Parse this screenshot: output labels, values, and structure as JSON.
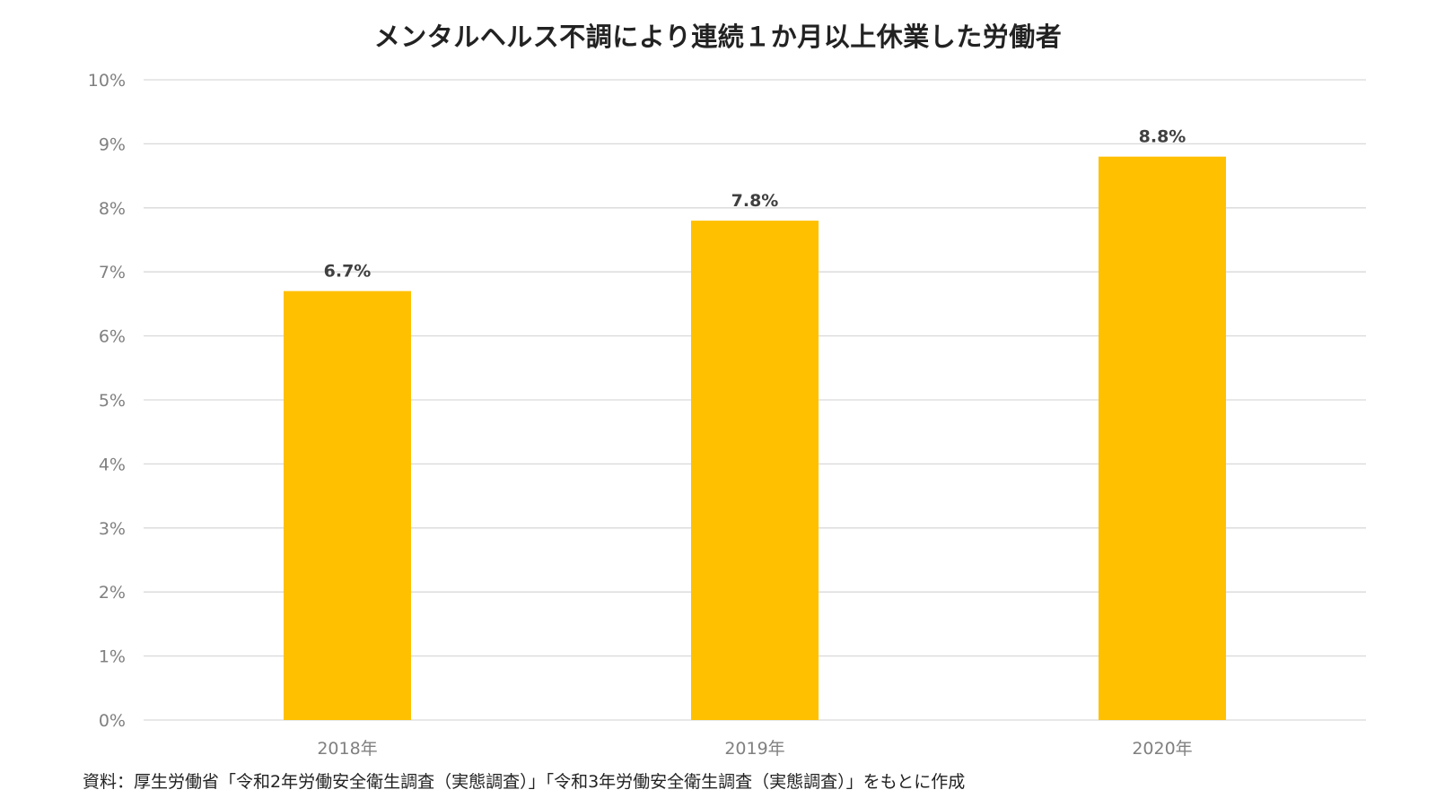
{
  "chart_data": {
    "type": "bar",
    "title": "メンタルヘルス不調により連続１か月以上休業した労働者",
    "categories": [
      "2018年",
      "2019年",
      "2020年"
    ],
    "values": [
      6.7,
      7.8,
      8.8
    ],
    "data_labels": [
      "6.7%",
      "7.8%",
      "8.8%"
    ],
    "ylim": [
      0,
      10
    ],
    "yticks": [
      0,
      1,
      2,
      3,
      4,
      5,
      6,
      7,
      8,
      9,
      10
    ],
    "ytick_labels": [
      "0%",
      "1%",
      "2%",
      "3%",
      "4%",
      "5%",
      "6%",
      "7%",
      "8%",
      "9%",
      "10%"
    ],
    "xlabel": "",
    "ylabel": "",
    "grid": true,
    "legend": "none",
    "bar_color": "#FFC000",
    "grid_color": "#D9D9D9"
  },
  "source_note": "資料：厚生労働省「令和2年労働安全衛生調査（実態調査）」「令和3年労働安全衛生調査（実態調査）」をもとに作成"
}
